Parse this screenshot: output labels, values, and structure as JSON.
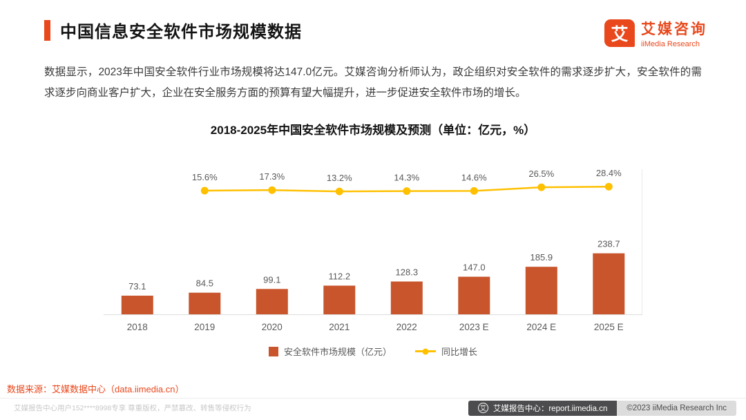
{
  "colors": {
    "accent": "#E8481C",
    "footer_bar": "#4C4C4E"
  },
  "header": {
    "title": "中国信息安全软件市场规模数据",
    "logo": {
      "mark": "艾",
      "name_cn": "艾媒咨询",
      "name_en": "iiMedia Research"
    }
  },
  "intro": "数据显示，2023年中国安全软件行业市场规模将达147.0亿元。艾媒咨询分析师认为，政企组织对安全软件的需求逐步扩大，安全软件的需求逐步向商业客户扩大，企业在安全服务方面的预算有望大幅提升，进一步促进安全软件市场的增长。",
  "chart_data": {
    "type": "bar",
    "title": "2018-2025年中国安全软件市场规模及预测（单位：亿元，%）",
    "categories": [
      "2018",
      "2019",
      "2020",
      "2021",
      "2022",
      "2023 E",
      "2024 E",
      "2025 E"
    ],
    "series": [
      {
        "name": "安全软件市场规模（亿元）",
        "type": "bar",
        "color": "#C8552B",
        "values": [
          73.1,
          84.5,
          99.1,
          112.2,
          128.3,
          147.0,
          185.9,
          238.7
        ]
      },
      {
        "name": "同比增长",
        "type": "line",
        "color": "#FFC000",
        "x_start_index": 1,
        "values": [
          15.6,
          17.3,
          13.2,
          14.3,
          14.6,
          26.5,
          28.4
        ],
        "value_suffix": "%"
      }
    ],
    "xlabel": "",
    "ylabel": "",
    "grid": false,
    "legend_position": "bottom"
  },
  "source": "数据来源：艾媒数据中心（data.iimedia.cn）",
  "footer": {
    "user_note": "艾媒报告中心用户152****8998专享 尊重版权，严禁篡改、转售等侵权行为",
    "logo_glyph": "艾",
    "report_center": "艾媒报告中心：report.iimedia.cn",
    "copyright": "©2023  iiMedia Research Inc"
  }
}
